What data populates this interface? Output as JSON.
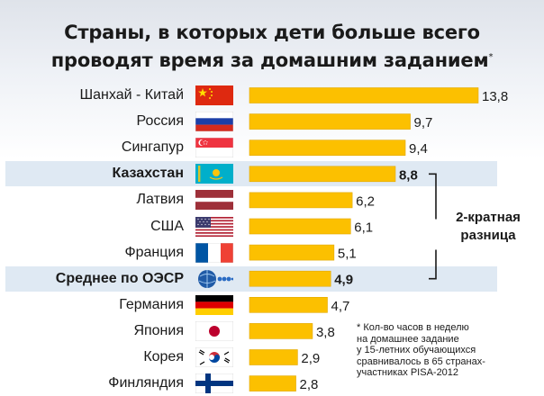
{
  "chart_data": {
    "type": "bar",
    "orientation": "horizontal",
    "title_line1": "Страны, в которых дети больше всего",
    "title_line2": "проводят время за домашним заданием",
    "title_mark": "*",
    "categories": [
      "Шанхай - Китай",
      "Россия",
      "Сингапур",
      "Казахстан",
      "Латвия",
      "США",
      "Франция",
      "Среднее по ОЭСР",
      "Германия",
      "Япония",
      "Корея",
      "Финляндия"
    ],
    "values": [
      13.8,
      9.7,
      9.4,
      8.8,
      6.2,
      6.1,
      5.1,
      4.9,
      4.7,
      3.8,
      2.9,
      2.8
    ],
    "value_labels": [
      "13,8",
      "9,7",
      "9,4",
      "8,8",
      "6,2",
      "6,1",
      "5,1",
      "4,9",
      "4,7",
      "3,8",
      "2,9",
      "2,8"
    ],
    "highlighted": [
      "Казахстан",
      "Среднее по ОЭСР"
    ],
    "xlim": [
      0,
      13.8
    ],
    "bar_color": "#fcc000",
    "highlight_color": "#dfe9f3",
    "annotation": {
      "line1": "2-кратная",
      "line2": "разница"
    },
    "footnote": [
      "* Кол-во часов в неделю",
      "на домашнее задание",
      "у 15-летних обучающихся",
      "сравнивалось в 65 странах-",
      "участниках PISA-2012"
    ]
  },
  "flags": [
    "china-flag-icon",
    "russia-flag-icon",
    "singapore-flag-icon",
    "kazakhstan-flag-icon",
    "latvia-flag-icon",
    "usa-flag-icon",
    "france-flag-icon",
    "oecd-logo-icon",
    "germany-flag-icon",
    "japan-flag-icon",
    "korea-flag-icon",
    "finland-flag-icon"
  ]
}
